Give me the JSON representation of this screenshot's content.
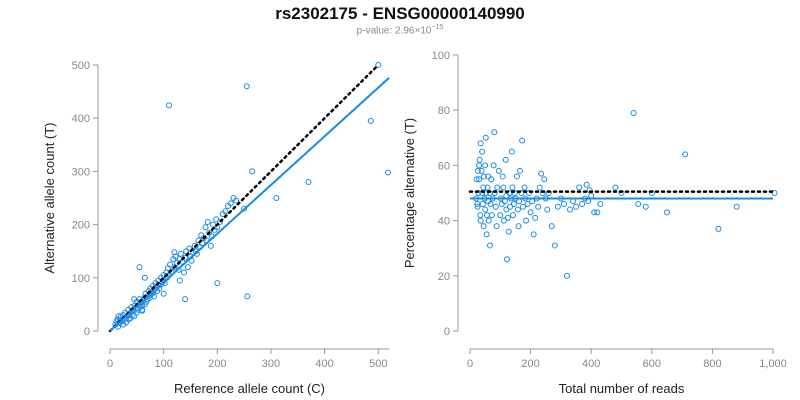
{
  "title": "rs2302175 - ENSG00000140990",
  "subtitle": {
    "prefix": "p-value: 2.96×10",
    "exponent": "−15"
  },
  "colors": {
    "points": "#1a8ae6",
    "fit": "#1a8ae6",
    "reference": "#000000",
    "axis": "#999999"
  },
  "chart_data": [
    {
      "type": "scatter",
      "xlabel": "Reference allele count (C)",
      "ylabel": "Alternative allele count (T)",
      "xlim": [
        0,
        520
      ],
      "ylim": [
        0,
        500
      ],
      "xticks": [
        0,
        100,
        200,
        300,
        400,
        500
      ],
      "yticks": [
        0,
        100,
        200,
        300,
        400,
        500
      ],
      "grid": false,
      "reference_line": {
        "style": "dotted",
        "slope": 1,
        "intercept": 0
      },
      "fit_line": {
        "style": "solid",
        "slope": 0.915,
        "intercept": 0
      },
      "points": [
        [
          10,
          12
        ],
        [
          12,
          18
        ],
        [
          14,
          22
        ],
        [
          15,
          8
        ],
        [
          16,
          28
        ],
        [
          18,
          15
        ],
        [
          19,
          20
        ],
        [
          20,
          26
        ],
        [
          22,
          18
        ],
        [
          24,
          30
        ],
        [
          25,
          12
        ],
        [
          26,
          22
        ],
        [
          28,
          34
        ],
        [
          30,
          25
        ],
        [
          30,
          16
        ],
        [
          32,
          28
        ],
        [
          34,
          40
        ],
        [
          35,
          22
        ],
        [
          36,
          30
        ],
        [
          38,
          24
        ],
        [
          40,
          36
        ],
        [
          40,
          45
        ],
        [
          42,
          30
        ],
        [
          44,
          38
        ],
        [
          45,
          28
        ],
        [
          46,
          48
        ],
        [
          48,
          42
        ],
        [
          50,
          35
        ],
        [
          50,
          55
        ],
        [
          52,
          40
        ],
        [
          54,
          50
        ],
        [
          55,
          60
        ],
        [
          56,
          45
        ],
        [
          58,
          52
        ],
        [
          60,
          48
        ],
        [
          60,
          38
        ],
        [
          62,
          58
        ],
        [
          64,
          62
        ],
        [
          65,
          50
        ],
        [
          66,
          70
        ],
        [
          68,
          55
        ],
        [
          70,
          65
        ],
        [
          70,
          60
        ],
        [
          72,
          75
        ],
        [
          74,
          62
        ],
        [
          75,
          80
        ],
        [
          76,
          68
        ],
        [
          78,
          70
        ],
        [
          80,
          72
        ],
        [
          80,
          85
        ],
        [
          82,
          65
        ],
        [
          84,
          78
        ],
        [
          85,
          90
        ],
        [
          86,
          82
        ],
        [
          88,
          75
        ],
        [
          90,
          85
        ],
        [
          90,
          95
        ],
        [
          92,
          80
        ],
        [
          95,
          88
        ],
        [
          95,
          100
        ],
        [
          98,
          92
        ],
        [
          100,
          95
        ],
        [
          100,
          105
        ],
        [
          102,
          90
        ],
        [
          105,
          110
        ],
        [
          106,
          100
        ],
        [
          108,
          118
        ],
        [
          110,
          105
        ],
        [
          112,
          125
        ],
        [
          115,
          110
        ],
        [
          118,
          135
        ],
        [
          120,
          120
        ],
        [
          120,
          148
        ],
        [
          122,
          140
        ],
        [
          125,
          128
        ],
        [
          128,
          115
        ],
        [
          130,
          135
        ],
        [
          132,
          145
        ],
        [
          135,
          130
        ],
        [
          138,
          110
        ],
        [
          140,
          138
        ],
        [
          142,
          150
        ],
        [
          145,
          120
        ],
        [
          148,
          155
        ],
        [
          150,
          140
        ],
        [
          152,
          132
        ],
        [
          155,
          148
        ],
        [
          158,
          160
        ],
        [
          160,
          150
        ],
        [
          162,
          145
        ],
        [
          165,
          170
        ],
        [
          168,
          158
        ],
        [
          170,
          180
        ],
        [
          172,
          165
        ],
        [
          175,
          175
        ],
        [
          178,
          195
        ],
        [
          180,
          170
        ],
        [
          182,
          205
        ],
        [
          185,
          185
        ],
        [
          188,
          160
        ],
        [
          190,
          178
        ],
        [
          192,
          200
        ],
        [
          195,
          190
        ],
        [
          198,
          210
        ],
        [
          200,
          195
        ],
        [
          205,
          205
        ],
        [
          210,
          220
        ],
        [
          215,
          225
        ],
        [
          220,
          235
        ],
        [
          225,
          240
        ],
        [
          230,
          250
        ],
        [
          235,
          245
        ],
        [
          250,
          230
        ],
        [
          265,
          300
        ],
        [
          310,
          250
        ],
        [
          370,
          280
        ],
        [
          486,
          395
        ],
        [
          518,
          298
        ],
        [
          500,
          500
        ],
        [
          110,
          424
        ],
        [
          255,
          460
        ],
        [
          256,
          65
        ],
        [
          200,
          90
        ],
        [
          140,
          60
        ],
        [
          100,
          70
        ],
        [
          60,
          40
        ],
        [
          55,
          120
        ],
        [
          65,
          100
        ],
        [
          45,
          60
        ],
        [
          130,
          95
        ]
      ]
    },
    {
      "type": "scatter",
      "xlabel": "Total number of reads",
      "ylabel": "Percentage alternative (T)",
      "xlim": [
        0,
        1000
      ],
      "ylim": [
        0,
        100
      ],
      "xticks": [
        "0",
        "200",
        "400",
        "600",
        "800",
        "1,000"
      ],
      "yticks": [
        0,
        20,
        40,
        60,
        80,
        100
      ],
      "grid": false,
      "reference_line": {
        "style": "dotted",
        "y": 50.5
      },
      "fit_line": {
        "style": "solid",
        "y": 48
      },
      "points": [
        [
          25,
          45
        ],
        [
          28,
          50
        ],
        [
          30,
          55
        ],
        [
          30,
          60
        ],
        [
          32,
          62
        ],
        [
          34,
          42
        ],
        [
          35,
          68
        ],
        [
          35,
          40
        ],
        [
          38,
          58
        ],
        [
          40,
          50
        ],
        [
          40,
          65
        ],
        [
          42,
          46
        ],
        [
          44,
          52
        ],
        [
          45,
          38
        ],
        [
          46,
          56
        ],
        [
          48,
          48
        ],
        [
          50,
          60
        ],
        [
          50,
          44
        ],
        [
          52,
          70
        ],
        [
          54,
          50
        ],
        [
          55,
          35
        ],
        [
          56,
          42
        ],
        [
          58,
          52
        ],
        [
          60,
          47
        ],
        [
          60,
          56
        ],
        [
          62,
          40
        ],
        [
          65,
          50
        ],
        [
          66,
          31
        ],
        [
          68,
          46
        ],
        [
          70,
          55
        ],
        [
          72,
          42
        ],
        [
          75,
          48
        ],
        [
          78,
          60
        ],
        [
          80,
          72
        ],
        [
          82,
          50
        ],
        [
          85,
          45
        ],
        [
          88,
          38
        ],
        [
          90,
          52
        ],
        [
          95,
          58
        ],
        [
          100,
          42
        ],
        [
          102,
          48
        ],
        [
          105,
          46
        ],
        [
          108,
          56
        ],
        [
          110,
          52
        ],
        [
          112,
          40
        ],
        [
          115,
          47
        ],
        [
          118,
          62
        ],
        [
          120,
          49
        ],
        [
          120,
          44
        ],
        [
          122,
          26
        ],
        [
          125,
          41
        ],
        [
          128,
          36
        ],
        [
          130,
          50
        ],
        [
          132,
          45
        ],
        [
          135,
          48
        ],
        [
          138,
          65
        ],
        [
          140,
          52
        ],
        [
          142,
          42
        ],
        [
          145,
          46
        ],
        [
          148,
          50
        ],
        [
          150,
          48
        ],
        [
          155,
          56
        ],
        [
          158,
          44
        ],
        [
          160,
          38
        ],
        [
          162,
          47
        ],
        [
          165,
          58
        ],
        [
          170,
          50
        ],
        [
          172,
          69
        ],
        [
          175,
          45
        ],
        [
          180,
          52
        ],
        [
          182,
          48
        ],
        [
          185,
          40
        ],
        [
          190,
          46
        ],
        [
          195,
          50
        ],
        [
          200,
          43
        ],
        [
          205,
          47
        ],
        [
          210,
          35
        ],
        [
          215,
          41
        ],
        [
          220,
          48
        ],
        [
          225,
          45
        ],
        [
          230,
          52
        ],
        [
          235,
          57
        ],
        [
          240,
          50
        ],
        [
          245,
          55
        ],
        [
          250,
          48
        ],
        [
          255,
          44
        ],
        [
          260,
          50
        ],
        [
          270,
          38
        ],
        [
          280,
          31
        ],
        [
          290,
          45
        ],
        [
          300,
          48
        ],
        [
          310,
          46
        ],
        [
          320,
          20
        ],
        [
          330,
          44
        ],
        [
          340,
          47
        ],
        [
          350,
          45
        ],
        [
          360,
          52
        ],
        [
          370,
          46
        ],
        [
          380,
          48
        ],
        [
          385,
          53
        ],
        [
          390,
          47
        ],
        [
          395,
          51
        ],
        [
          400,
          49
        ],
        [
          410,
          43
        ],
        [
          420,
          43
        ],
        [
          430,
          46
        ],
        [
          480,
          52
        ],
        [
          500,
          50
        ],
        [
          540,
          79
        ],
        [
          555,
          46
        ],
        [
          580,
          45
        ],
        [
          600,
          50
        ],
        [
          650,
          43
        ],
        [
          710,
          64
        ],
        [
          820,
          37
        ],
        [
          880,
          45
        ],
        [
          1005,
          50
        ],
        [
          20,
          48
        ],
        [
          22,
          55
        ],
        [
          24,
          46
        ],
        [
          26,
          58
        ]
      ]
    }
  ]
}
